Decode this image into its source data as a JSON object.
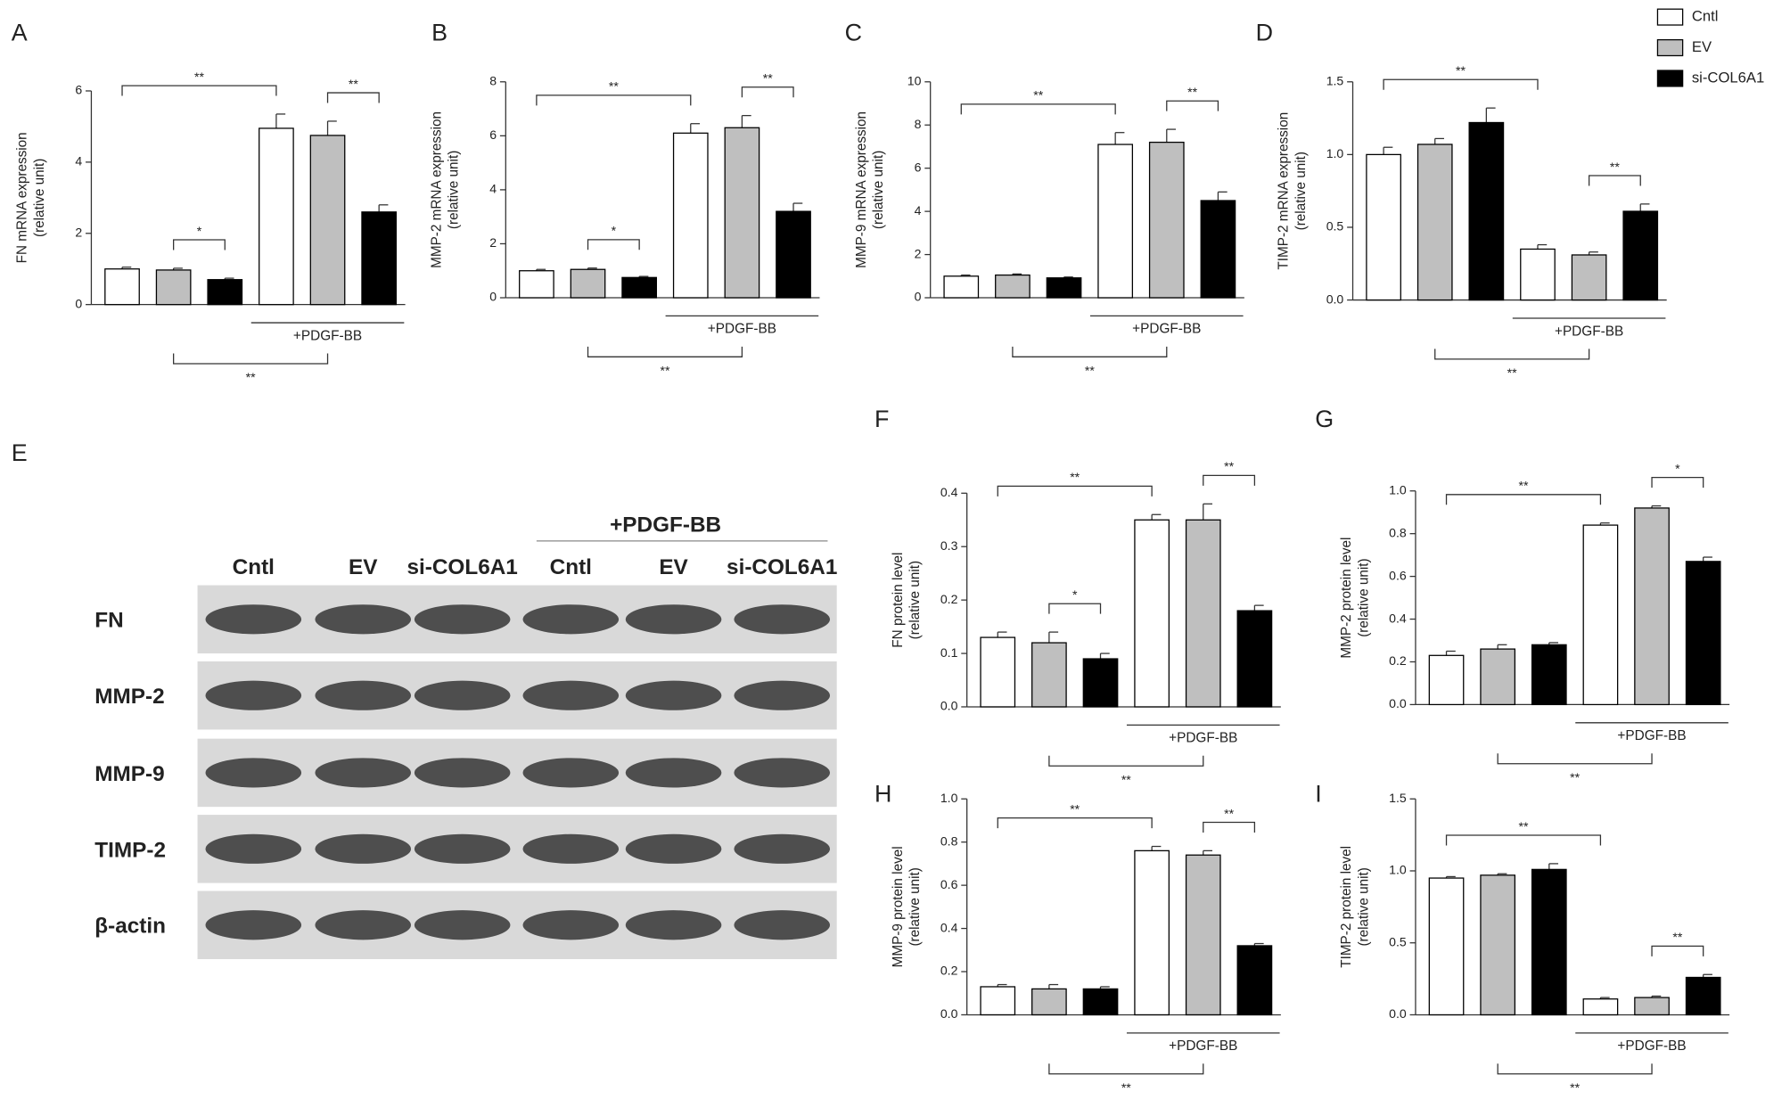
{
  "legend": {
    "names": [
      "Cntl",
      "EV",
      "si-COL6A1"
    ],
    "colors": [
      "#ffffff",
      "#bfbfbf",
      "#000000"
    ]
  },
  "blot": {
    "label": "E",
    "treatment": "+PDGF-BB",
    "lanes": [
      "Cntl",
      "EV",
      "si-COL6A1",
      "Cntl",
      "EV",
      "si-COL6A1"
    ],
    "rows": [
      "FN",
      "MMP-2",
      "MMP-9",
      "TIMP-2",
      "β-actin"
    ]
  },
  "chart_data": [
    {
      "panel": "A",
      "type": "bar",
      "ylabel": [
        "FN mRNA expression",
        "(relative unit)"
      ],
      "categories": [
        null,
        "+PDGF-BB"
      ],
      "series": [
        {
          "values": [
            1.0,
            4.95
          ],
          "errors": [
            0.05,
            0.4
          ]
        },
        {
          "values": [
            0.97,
            4.75
          ],
          "errors": [
            0.05,
            0.4
          ]
        },
        {
          "values": [
            0.7,
            2.6
          ],
          "errors": [
            0.04,
            0.2
          ]
        }
      ],
      "ylim": [
        0,
        6
      ],
      "yticks": [
        0,
        2,
        4,
        6
      ],
      "brackets": [
        {
          "label": "**",
          "bars": [
            0,
            3
          ]
        },
        {
          "label": "*",
          "bars": [
            1,
            2
          ]
        },
        {
          "label": "**",
          "bars": [
            4,
            5
          ]
        }
      ],
      "bottom_bracket": {
        "label": "**",
        "bars": [
          1,
          4
        ]
      }
    },
    {
      "panel": "B",
      "type": "bar",
      "ylabel": [
        "MMP-2 mRNA expression",
        "(relative unit)"
      ],
      "categories": [
        null,
        "+PDGF-BB"
      ],
      "series": [
        {
          "values": [
            1.0,
            6.1
          ],
          "errors": [
            0.05,
            0.35
          ]
        },
        {
          "values": [
            1.05,
            6.3
          ],
          "errors": [
            0.05,
            0.45
          ]
        },
        {
          "values": [
            0.75,
            3.2
          ],
          "errors": [
            0.04,
            0.3
          ]
        }
      ],
      "ylim": [
        0,
        8
      ],
      "yticks": [
        0,
        2,
        4,
        6,
        8
      ],
      "brackets": [
        {
          "label": "**",
          "bars": [
            0,
            3
          ]
        },
        {
          "label": "*",
          "bars": [
            1,
            2
          ]
        },
        {
          "label": "**",
          "bars": [
            4,
            5
          ]
        }
      ],
      "bottom_bracket": {
        "label": "**",
        "bars": [
          1,
          4
        ]
      }
    },
    {
      "panel": "C",
      "type": "bar",
      "ylabel": [
        "MMP-9 mRNA expression",
        "(relative unit)"
      ],
      "categories": [
        null,
        "+PDGF-BB"
      ],
      "series": [
        {
          "values": [
            1.0,
            7.1
          ],
          "errors": [
            0.05,
            0.55
          ]
        },
        {
          "values": [
            1.05,
            7.2
          ],
          "errors": [
            0.05,
            0.6
          ]
        },
        {
          "values": [
            0.92,
            4.5
          ],
          "errors": [
            0.04,
            0.4
          ]
        }
      ],
      "ylim": [
        0,
        10
      ],
      "yticks": [
        0,
        2,
        4,
        6,
        8,
        10
      ],
      "brackets": [
        {
          "label": "**",
          "bars": [
            0,
            3
          ]
        },
        {
          "label": "**",
          "bars": [
            4,
            5
          ]
        }
      ],
      "bottom_bracket": {
        "label": "**",
        "bars": [
          1,
          4
        ]
      }
    },
    {
      "panel": "D",
      "type": "bar",
      "ylabel": [
        "TIMP-2 mRNA expression",
        "(relative unit)"
      ],
      "categories": [
        null,
        "+PDGF-BB"
      ],
      "series": [
        {
          "values": [
            1.0,
            0.35
          ],
          "errors": [
            0.05,
            0.03
          ]
        },
        {
          "values": [
            1.07,
            0.31
          ],
          "errors": [
            0.04,
            0.02
          ]
        },
        {
          "values": [
            1.22,
            0.61
          ],
          "errors": [
            0.1,
            0.05
          ]
        }
      ],
      "ylim": [
        0,
        1.5
      ],
      "yticks": [
        {
          "value": 0,
          "label": "0.0"
        },
        0.5,
        {
          "value": 1,
          "label": "1.0"
        },
        1.5
      ],
      "brackets": [
        {
          "label": "**",
          "bars": [
            0,
            3
          ]
        },
        {
          "label": "**",
          "bars": [
            4,
            5
          ]
        }
      ],
      "bottom_bracket": {
        "label": "**",
        "bars": [
          1,
          4
        ]
      }
    },
    {
      "panel": "F",
      "type": "bar",
      "ylabel": [
        "FN protein level",
        "(relative unit)"
      ],
      "categories": [
        null,
        "+PDGF-BB"
      ],
      "series": [
        {
          "values": [
            0.13,
            0.35
          ],
          "errors": [
            0.01,
            0.01
          ]
        },
        {
          "values": [
            0.12,
            0.35
          ],
          "errors": [
            0.02,
            0.03
          ]
        },
        {
          "values": [
            0.09,
            0.18
          ],
          "errors": [
            0.01,
            0.01
          ]
        }
      ],
      "ylim": [
        0,
        0.4
      ],
      "yticks": [
        {
          "value": 0,
          "label": "0.0"
        },
        0.1,
        0.2,
        0.3,
        0.4
      ],
      "brackets": [
        {
          "label": "**",
          "bars": [
            0,
            3
          ]
        },
        {
          "label": "*",
          "bars": [
            1,
            2
          ]
        },
        {
          "label": "**",
          "bars": [
            4,
            5
          ]
        }
      ],
      "bottom_bracket": {
        "label": "**",
        "bars": [
          1,
          4
        ]
      }
    },
    {
      "panel": "G",
      "type": "bar",
      "ylabel": [
        "MMP-2 protein level",
        "(relative unit)"
      ],
      "categories": [
        null,
        "+PDGF-BB"
      ],
      "series": [
        {
          "values": [
            0.23,
            0.84
          ],
          "errors": [
            0.02,
            0.01
          ]
        },
        {
          "values": [
            0.26,
            0.92
          ],
          "errors": [
            0.02,
            0.01
          ]
        },
        {
          "values": [
            0.28,
            0.67
          ],
          "errors": [
            0.01,
            0.02
          ]
        }
      ],
      "ylim": [
        0,
        1
      ],
      "yticks": [
        {
          "value": 0,
          "label": "0.0"
        },
        0.2,
        0.4,
        0.6,
        0.8,
        {
          "value": 1,
          "label": "1.0"
        }
      ],
      "brackets": [
        {
          "label": "**",
          "bars": [
            0,
            3
          ]
        },
        {
          "label": "*",
          "bars": [
            4,
            5
          ]
        }
      ],
      "bottom_bracket": {
        "label": "**",
        "bars": [
          1,
          4
        ]
      }
    },
    {
      "panel": "H",
      "type": "bar",
      "ylabel": [
        "MMP-9 protein level",
        "(relative unit)"
      ],
      "categories": [
        null,
        "+PDGF-BB"
      ],
      "series": [
        {
          "values": [
            0.13,
            0.76
          ],
          "errors": [
            0.01,
            0.02
          ]
        },
        {
          "values": [
            0.12,
            0.74
          ],
          "errors": [
            0.02,
            0.02
          ]
        },
        {
          "values": [
            0.12,
            0.32
          ],
          "errors": [
            0.01,
            0.01
          ]
        }
      ],
      "ylim": [
        0,
        1
      ],
      "yticks": [
        {
          "value": 0,
          "label": "0.0"
        },
        0.2,
        0.4,
        0.6,
        0.8,
        {
          "value": 1,
          "label": "1.0"
        }
      ],
      "brackets": [
        {
          "label": "**",
          "bars": [
            0,
            3
          ]
        },
        {
          "label": "**",
          "bars": [
            4,
            5
          ]
        }
      ],
      "bottom_bracket": {
        "label": "**",
        "bars": [
          1,
          4
        ]
      }
    },
    {
      "panel": "I",
      "type": "bar",
      "ylabel": [
        "TIMP-2 protein level",
        "(relative unit)"
      ],
      "categories": [
        null,
        "+PDGF-BB"
      ],
      "series": [
        {
          "values": [
            0.95,
            0.11
          ],
          "errors": [
            0.01,
            0.01
          ]
        },
        {
          "values": [
            0.97,
            0.12
          ],
          "errors": [
            0.01,
            0.01
          ]
        },
        {
          "values": [
            1.01,
            0.26
          ],
          "errors": [
            0.04,
            0.02
          ]
        }
      ],
      "ylim": [
        0,
        1.5
      ],
      "yticks": [
        {
          "value": 0,
          "label": "0.0"
        },
        0.5,
        {
          "value": 1,
          "label": "1.0"
        },
        1.5
      ],
      "brackets": [
        {
          "label": "**",
          "bars": [
            0,
            3
          ]
        },
        {
          "label": "**",
          "bars": [
            4,
            5
          ]
        }
      ],
      "bottom_bracket": {
        "label": "**",
        "bars": [
          1,
          4
        ]
      }
    }
  ]
}
